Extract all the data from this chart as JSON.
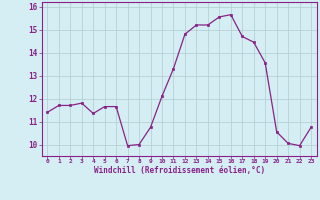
{
  "x": [
    0,
    1,
    2,
    3,
    4,
    5,
    6,
    7,
    8,
    9,
    10,
    11,
    12,
    13,
    14,
    15,
    16,
    17,
    18,
    19,
    20,
    21,
    22,
    23
  ],
  "y": [
    11.4,
    11.7,
    11.7,
    11.8,
    11.35,
    11.65,
    11.65,
    9.95,
    10.0,
    10.75,
    12.1,
    13.3,
    14.8,
    15.2,
    15.2,
    15.55,
    15.65,
    14.7,
    14.45,
    13.55,
    10.55,
    10.05,
    9.95,
    10.75
  ],
  "line_color": "#882288",
  "marker": "s",
  "marker_size": 2,
  "bg_color": "#d4eef4",
  "grid_color": "#b0cccc",
  "axis_color": "#882288",
  "xlabel": "Windchill (Refroidissement éolien,°C)",
  "xlim": [
    -0.5,
    23.5
  ],
  "ylim": [
    9.5,
    16.2
  ],
  "yticks": [
    10,
    11,
    12,
    13,
    14,
    15,
    16
  ],
  "xticks": [
    0,
    1,
    2,
    3,
    4,
    5,
    6,
    7,
    8,
    9,
    10,
    11,
    12,
    13,
    14,
    15,
    16,
    17,
    18,
    19,
    20,
    21,
    22,
    23
  ]
}
